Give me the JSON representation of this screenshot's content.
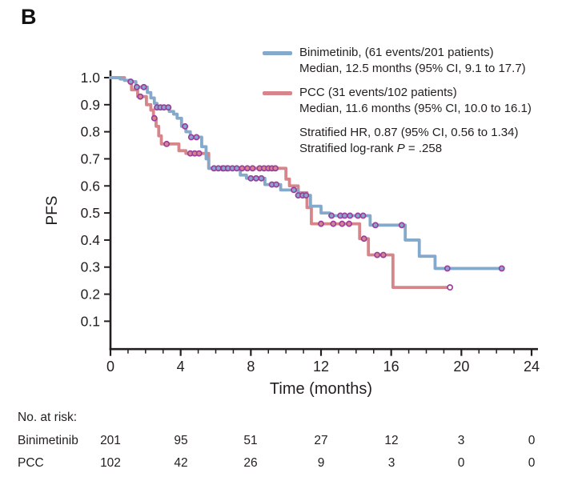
{
  "panel_label": "B",
  "colors": {
    "binimetinib_line": "#85a9cb",
    "pcc_line": "#d6868a",
    "censor_ring": "#9c3d9e",
    "axis": "#231f20"
  },
  "legend": {
    "items": [
      {
        "name": "Binimetinib",
        "label": "Binimetinib, (61 events/201 patients)",
        "median_line": "Median, 12.5 months (95% CI, 9.1 to 17.7)"
      },
      {
        "name": "PCC",
        "label": "PCC (31 events/102 patients)",
        "median_line": "Median, 11.6 months (95% CI, 10.0 to 16.1)"
      }
    ],
    "stats": {
      "hr_line": "Stratified HR, 0.87 (95% CI, 0.56 to 1.34)",
      "logrank_prefix": "Stratified log-rank ",
      "logrank_symbol": "P",
      "logrank_suffix": " = .258"
    }
  },
  "chart_data": {
    "type": "line",
    "subtype": "kaplan-meier-step",
    "title": "",
    "xlabel": "Time (months)",
    "ylabel": "PFS",
    "xlim": [
      0,
      24
    ],
    "ylim": [
      0,
      1.0
    ],
    "x_major_ticks": [
      0,
      4,
      8,
      12,
      16,
      20,
      24
    ],
    "x_minor_tick_interval": 1,
    "y_tick_labels": [
      "1.0",
      "0.9",
      "0.8",
      "0.7",
      "0.6",
      "0.5",
      "0.4",
      "0.3",
      "0.2",
      "0.1"
    ],
    "grid": false,
    "legend_position": "top-right",
    "series": [
      {
        "name": "PCC",
        "color": "#d6868a",
        "steps": [
          [
            0,
            1.0
          ],
          [
            0.8,
            0.99
          ],
          [
            1.2,
            0.955
          ],
          [
            1.55,
            0.93
          ],
          [
            2.05,
            0.9
          ],
          [
            2.3,
            0.88
          ],
          [
            2.45,
            0.85
          ],
          [
            2.6,
            0.82
          ],
          [
            2.75,
            0.785
          ],
          [
            2.9,
            0.755
          ],
          [
            3.9,
            0.73
          ],
          [
            4.3,
            0.72
          ],
          [
            5.6,
            0.665
          ],
          [
            10.0,
            0.625
          ],
          [
            10.2,
            0.6
          ],
          [
            10.7,
            0.575
          ],
          [
            11.2,
            0.52
          ],
          [
            11.45,
            0.46
          ],
          [
            14.2,
            0.405
          ],
          [
            14.7,
            0.345
          ],
          [
            16.1,
            0.225
          ],
          [
            19.35,
            0.225
          ]
        ],
        "censor_times": [
          1.7,
          2.5,
          3.2,
          4.55,
          4.8,
          5.05,
          6.4,
          6.65,
          7.5,
          7.8,
          8.1,
          8.5,
          8.75,
          9.0,
          9.2,
          9.4,
          12.0,
          12.7,
          13.2,
          13.6,
          14.45,
          15.2,
          15.55,
          19.35
        ],
        "end_censor_open": true
      },
      {
        "name": "Binimetinib",
        "color": "#85a9cb",
        "steps": [
          [
            0,
            1.0
          ],
          [
            0.55,
            0.995
          ],
          [
            0.8,
            0.99
          ],
          [
            1.05,
            0.985
          ],
          [
            1.45,
            0.965
          ],
          [
            2.1,
            0.945
          ],
          [
            2.3,
            0.925
          ],
          [
            2.5,
            0.905
          ],
          [
            2.65,
            0.89
          ],
          [
            3.35,
            0.875
          ],
          [
            3.6,
            0.865
          ],
          [
            3.8,
            0.85
          ],
          [
            4.05,
            0.82
          ],
          [
            4.3,
            0.8
          ],
          [
            4.55,
            0.78
          ],
          [
            5.2,
            0.745
          ],
          [
            5.45,
            0.7
          ],
          [
            5.6,
            0.665
          ],
          [
            7.4,
            0.64
          ],
          [
            7.75,
            0.628
          ],
          [
            8.8,
            0.605
          ],
          [
            9.7,
            0.585
          ],
          [
            10.7,
            0.565
          ],
          [
            11.4,
            0.525
          ],
          [
            12.0,
            0.5
          ],
          [
            12.5,
            0.49
          ],
          [
            14.8,
            0.455
          ],
          [
            16.8,
            0.4
          ],
          [
            17.6,
            0.34
          ],
          [
            18.5,
            0.295
          ],
          [
            22.3,
            0.295
          ]
        ],
        "censor_times": [
          1.15,
          1.5,
          1.9,
          2.65,
          2.85,
          3.05,
          3.3,
          4.25,
          4.6,
          4.9,
          5.9,
          6.15,
          6.45,
          6.7,
          6.95,
          7.2,
          8.0,
          8.3,
          8.6,
          9.2,
          9.45,
          10.45,
          10.7,
          10.95,
          11.15,
          12.6,
          13.1,
          13.35,
          13.65,
          14.1,
          14.4,
          15.1,
          16.6,
          19.2,
          22.3
        ],
        "end_censor_open": false
      }
    ]
  },
  "risk_table": {
    "title": "No. at risk:",
    "time_points": [
      0,
      4,
      8,
      12,
      16,
      20,
      24
    ],
    "rows": [
      {
        "label": "Binimetinib",
        "counts": [
          "201",
          "95",
          "51",
          "27",
          "12",
          "3",
          "0"
        ]
      },
      {
        "label": "PCC",
        "counts": [
          "102",
          "42",
          "26",
          "9",
          "3",
          "0",
          "0"
        ]
      }
    ]
  }
}
